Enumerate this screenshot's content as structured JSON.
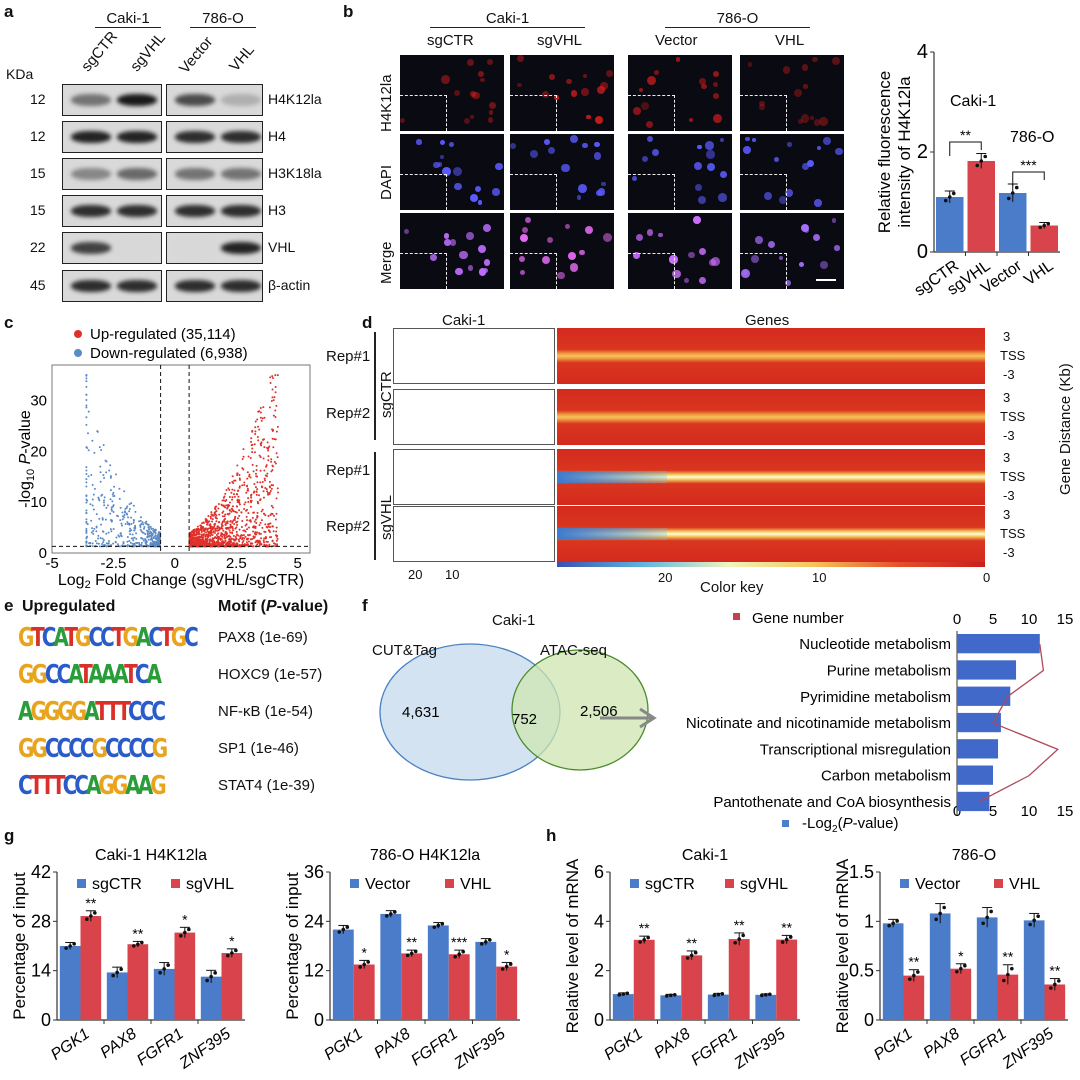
{
  "panel_labels": [
    "a",
    "b",
    "c",
    "d",
    "e",
    "f",
    "g",
    "h"
  ],
  "colors": {
    "blue": "#4a7cc9",
    "red": "#d9434b",
    "venn_left": "#c9dcef",
    "venn_right": "#cfe6b0"
  },
  "a": {
    "groups": [
      "Caki-1",
      "786-O"
    ],
    "lanes": [
      "sgCTR",
      "sgVHL",
      "Vector",
      "VHL"
    ],
    "kda_label": "KDa",
    "rows": [
      {
        "kda": "12",
        "protein": "H4K12la",
        "bands": [
          0.5,
          0.95,
          0.7,
          0.2
        ]
      },
      {
        "kda": "12",
        "protein": "H4",
        "bands": [
          0.9,
          0.9,
          0.85,
          0.85
        ]
      },
      {
        "kda": "15",
        "protein": "H3K18la",
        "bands": [
          0.4,
          0.55,
          0.5,
          0.5
        ]
      },
      {
        "kda": "15",
        "protein": "H3",
        "bands": [
          0.85,
          0.85,
          0.85,
          0.85
        ]
      },
      {
        "kda": "22",
        "protein": "VHL",
        "bands": [
          0.75,
          0,
          0,
          0.9
        ]
      },
      {
        "kda": "45",
        "protein": "β-actin",
        "bands": [
          0.85,
          0.85,
          0.85,
          0.85
        ]
      }
    ]
  },
  "b": {
    "groups": [
      "Caki-1",
      "786-O"
    ],
    "lanes": [
      "sgCTR",
      "sgVHL",
      "Vector",
      "VHL"
    ],
    "rows": [
      "H4K12la",
      "DAPI",
      "Merge"
    ]
  },
  "d": {
    "cell": "Caki-1",
    "genes": "Genes",
    "groups": [
      "sgCTR",
      "sgVHL"
    ],
    "reps": [
      "Rep#1",
      "Rep#2",
      "Rep#1",
      "Rep#2"
    ],
    "profile_ticks": [
      "20",
      "10"
    ],
    "row_ticks": [
      "3",
      "TSS",
      "-3"
    ],
    "y_label": "Gene Distance (Kb)",
    "color_key": "Color key",
    "key_ticks": [
      "20",
      "10",
      "0"
    ]
  },
  "e": {
    "header": "Upregulated",
    "motif_header": "Motif (",
    "motif_header_p": "P",
    "motif_header_end": "-value)",
    "motifs": [
      {
        "logo": "GTCATGCCTGACTGC",
        "name": "PAX8 (1e-69)"
      },
      {
        "logo": "GGCCATAAATCA",
        "name": "HOXC9 (1e-57)"
      },
      {
        "logo": "AGGGGATTTCCC",
        "name": "NF-κB (1e-54)"
      },
      {
        "logo": "GGCCCCGCCCCG",
        "name": "SP1 (1e-46)"
      },
      {
        "logo": "CTTTCCAGGAAG",
        "name": "STAT4 (1e-39)"
      }
    ]
  },
  "f": {
    "cell": "Caki-1",
    "sets": [
      "CUT&Tag",
      "ATAC-seq"
    ],
    "counts": [
      "4,631",
      "752",
      "2,506"
    ]
  },
  "chart_data": [
    {
      "id": "b-fluorescence",
      "type": "bar",
      "ylabel": [
        "Relative  fluorescence",
        "intensity of H4K12la"
      ],
      "ylim": [
        0,
        4
      ],
      "yticks": [
        0,
        2,
        4
      ],
      "categories": [
        "sgCTR",
        "sgVHL",
        "Vector",
        "VHL"
      ],
      "values": [
        1.1,
        1.82,
        1.18,
        0.53
      ],
      "errors": [
        0.12,
        0.15,
        0.18,
        0.06
      ],
      "bar_colors": [
        "blue",
        "red",
        "blue",
        "red"
      ],
      "annotations": [
        "Caki-1",
        "786-O"
      ],
      "significance": [
        {
          "between": [
            "sgCTR",
            "sgVHL"
          ],
          "label": "**"
        },
        {
          "between": [
            "Vector",
            "VHL"
          ],
          "label": "***"
        }
      ]
    },
    {
      "id": "c-volcano",
      "type": "scatter",
      "legend": [
        "Up-regulated (35,114)",
        "Down-regulated (6,938)"
      ],
      "ylabel_parts": [
        "-log",
        "10",
        " ",
        "P",
        "-value"
      ],
      "xlabel_parts": [
        "Log",
        "2",
        " Fold Change (sgVHL/sgCTR)"
      ],
      "xlim": [
        -5,
        5.5
      ],
      "ylim": [
        0,
        37
      ],
      "xticks": [
        "-5",
        "-2.5",
        "0",
        "2.5",
        "5"
      ],
      "yticks": [
        "0",
        "10",
        "20",
        "30"
      ],
      "fc_threshold": [
        -0.58,
        0.58
      ],
      "p_threshold": 1.3
    },
    {
      "id": "f-kegg",
      "type": "bar",
      "orientation": "horizontal",
      "legend": [
        "Gene number",
        "-Log",
        "2",
        "(",
        "P",
        "-value)"
      ],
      "xlim": [
        0,
        15
      ],
      "xticks": [
        "0",
        "5",
        "10",
        "15"
      ],
      "categories": [
        "Nucleotide metabolism",
        "Purine metabolism",
        "Pyrimidine metabolism",
        "Nicotinate and nicotinamide metabolism",
        "Transcriptional misregulation",
        "Carbon metabolism",
        "Pantothenate and CoA biosynthesis"
      ],
      "neg_log2_p": [
        11.5,
        8.2,
        7.4,
        6.1,
        5.7,
        5.0,
        4.5
      ],
      "gene_number": [
        11.5,
        12,
        7,
        5,
        14,
        10,
        3
      ]
    },
    {
      "id": "g-caki",
      "type": "bar",
      "title": "Caki-1  H4K12la",
      "ylabel": "Percentage of input",
      "ylim": [
        0,
        42
      ],
      "yticks": [
        0,
        14,
        28,
        42
      ],
      "categories": [
        "PGK1",
        "PAX8",
        "FGFR1",
        "ZNF395"
      ],
      "series": [
        {
          "name": "sgCTR",
          "values": [
            21,
            13.5,
            14.5,
            12.3
          ],
          "errors": [
            1,
            1.5,
            1.8,
            1.8
          ]
        },
        {
          "name": "sgVHL",
          "values": [
            29.5,
            21.5,
            24.8,
            19
          ],
          "errors": [
            1.5,
            0.8,
            1.5,
            1.2
          ]
        }
      ],
      "stars": [
        "**",
        "**",
        "*",
        "*"
      ]
    },
    {
      "id": "g-786o",
      "type": "bar",
      "title": "786-O  H4K12la",
      "ylabel": "Percentage of input",
      "ylim": [
        0,
        36
      ],
      "yticks": [
        0,
        12,
        24,
        36
      ],
      "categories": [
        "PGK1",
        "PAX8",
        "FGFR1",
        "ZNF395"
      ],
      "series": [
        {
          "name": "Vector",
          "values": [
            22,
            25.8,
            23,
            19
          ],
          "errors": [
            1,
            0.8,
            0.7,
            0.8
          ]
        },
        {
          "name": "VHL",
          "values": [
            13.5,
            16.2,
            16,
            13
          ],
          "errors": [
            1,
            0.8,
            1,
            1
          ]
        }
      ],
      "stars": [
        "*",
        "**",
        "***",
        "*"
      ]
    },
    {
      "id": "h-caki",
      "type": "bar",
      "title": "Caki-1",
      "ylabel": "Relative level of mRNA",
      "ylim": [
        0,
        6
      ],
      "yticks": [
        0,
        2,
        4,
        6
      ],
      "categories": [
        "PGK1",
        "PAX8",
        "FGFR1",
        "ZNF395"
      ],
      "series": [
        {
          "name": "sgCTR",
          "values": [
            1.05,
            1.0,
            1.03,
            1.02
          ],
          "errors": [
            0.05,
            0.04,
            0.05,
            0.04
          ]
        },
        {
          "name": "sgVHL",
          "values": [
            3.25,
            2.62,
            3.28,
            3.26
          ],
          "errors": [
            0.15,
            0.18,
            0.25,
            0.17
          ]
        }
      ],
      "stars": [
        "**",
        "**",
        "**",
        "**"
      ]
    },
    {
      "id": "h-786o",
      "type": "bar",
      "title": "786-O",
      "ylabel": "Relative level of mRNA",
      "ylim": [
        0,
        1.5
      ],
      "yticks": [
        0,
        0.5,
        1,
        1.5
      ],
      "categories": [
        "PGK1",
        "PAX8",
        "FGFR1",
        "ZNF395"
      ],
      "series": [
        {
          "name": "Vector",
          "values": [
            0.98,
            1.08,
            1.04,
            1.01
          ],
          "errors": [
            0.04,
            0.1,
            0.1,
            0.07
          ]
        },
        {
          "name": "VHL",
          "values": [
            0.45,
            0.52,
            0.46,
            0.36
          ],
          "errors": [
            0.06,
            0.05,
            0.1,
            0.06
          ]
        }
      ],
      "stars": [
        "**",
        "*",
        "**",
        "**"
      ]
    }
  ]
}
